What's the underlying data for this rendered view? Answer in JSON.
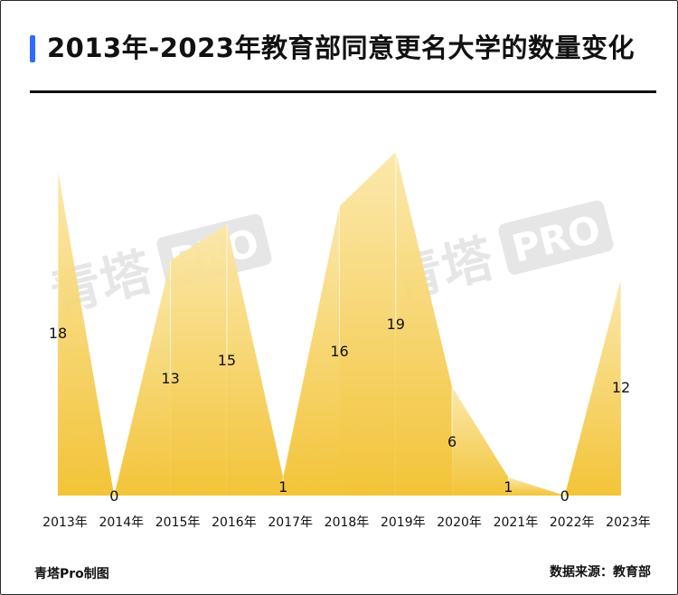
{
  "title": "2013年-2023年教育部同意更名大学的数量变化",
  "watermark": [
    "青塔",
    "PRO"
  ],
  "footer": {
    "credit": "青塔Pro制图",
    "source": "数据来源：教育部"
  },
  "colors": {
    "accent": "#2f6bff",
    "area_top": "#fbe7a8",
    "area_bottom": "#f2c12e"
  },
  "chart_data": {
    "type": "area",
    "categories": [
      "2013年",
      "2014年",
      "2015年",
      "2016年",
      "2017年",
      "2018年",
      "2019年",
      "2020年",
      "2021年",
      "2022年",
      "2023年"
    ],
    "values": [
      18,
      0,
      13,
      15,
      1,
      16,
      19,
      6,
      1,
      0,
      12
    ],
    "ylim": [
      0,
      20
    ],
    "grid": false,
    "legend": "none"
  }
}
